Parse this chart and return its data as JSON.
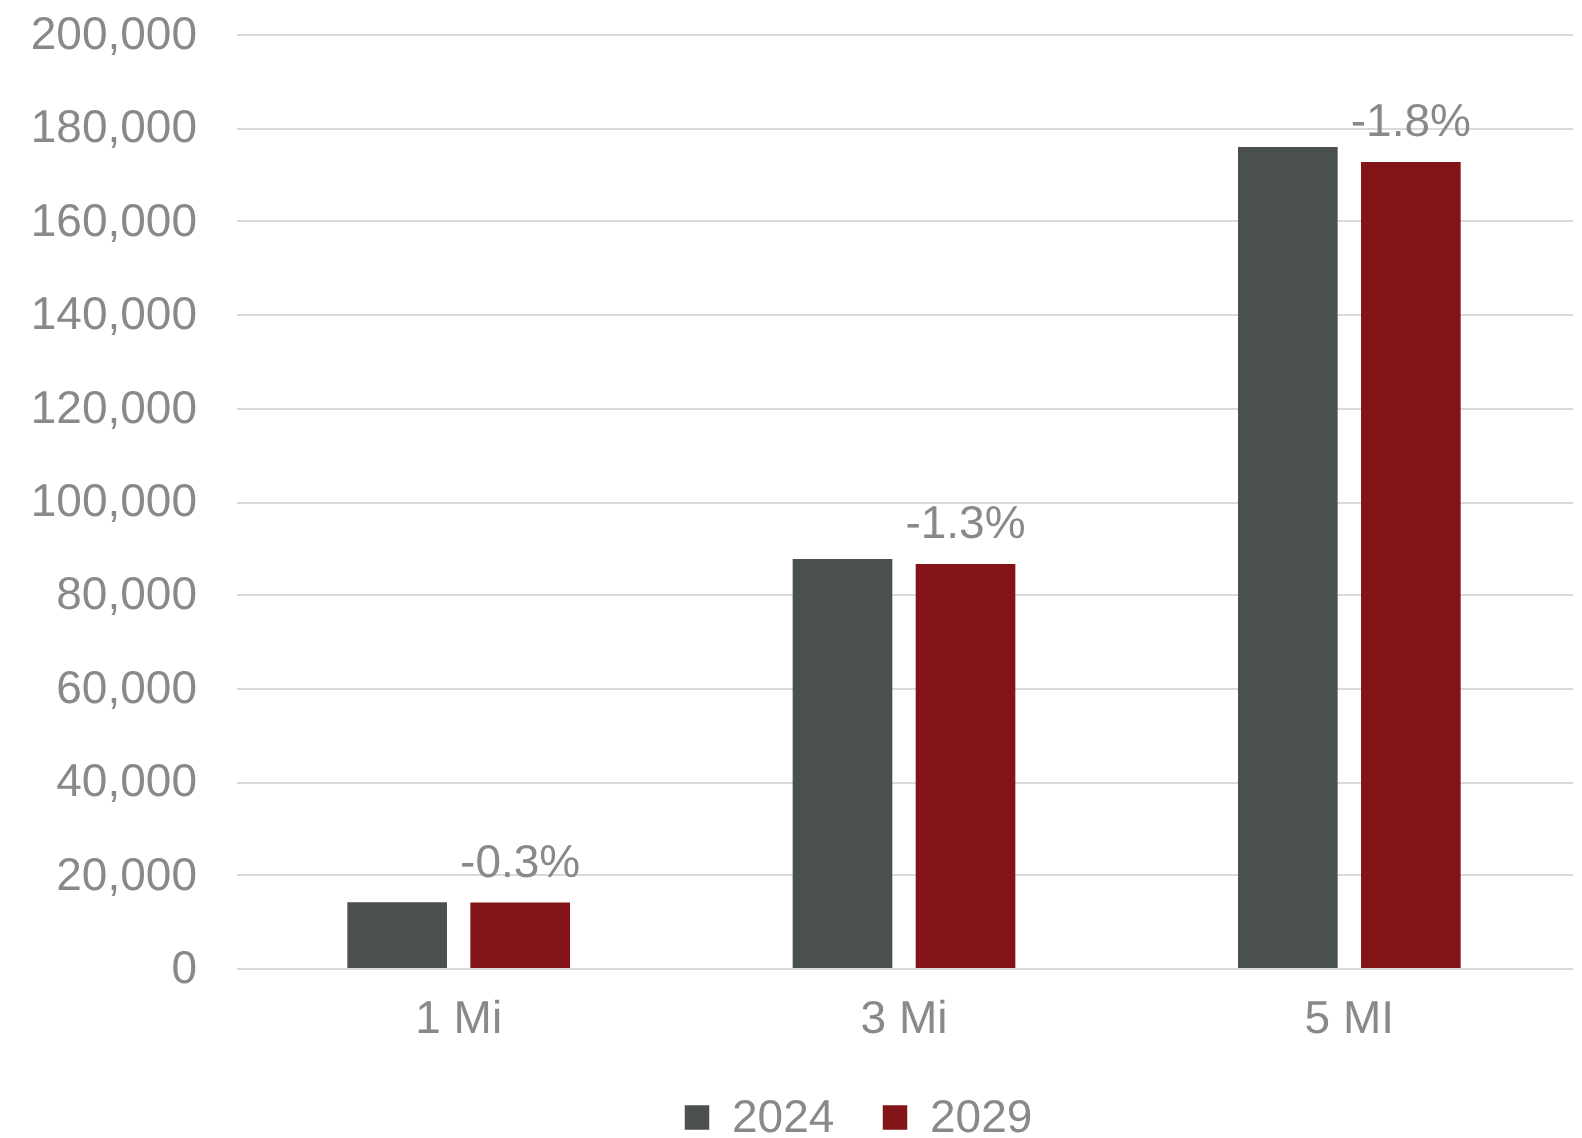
{
  "chart_data": {
    "type": "bar",
    "categories": [
      "1 Mi",
      "3 Mi",
      "5 MI"
    ],
    "series": [
      {
        "name": "2024",
        "color": "#4a4f4f",
        "values": [
          14100,
          87600,
          175800
        ]
      },
      {
        "name": "2029",
        "color": "#821418",
        "values": [
          14000,
          86500,
          172600
        ]
      }
    ],
    "annotations": [
      "-0.3%",
      "-1.3%",
      "-1.8%"
    ],
    "ylim": [
      0,
      200000
    ],
    "yticks": [
      0,
      {
        "value": 20000,
        "label": "20,000"
      },
      {
        "value": 40000,
        "label": "40,000"
      },
      {
        "value": 60000,
        "label": "60,000"
      },
      {
        "value": 80000,
        "label": "80,000"
      },
      {
        "value": 100000,
        "label": "100,000"
      },
      {
        "value": 120000,
        "label": "120,000"
      },
      {
        "value": 140000,
        "label": "140,000"
      },
      {
        "value": 160000,
        "label": "160,000"
      },
      {
        "value": 180000,
        "label": "180,000"
      },
      {
        "value": 200000,
        "label": "200,000"
      }
    ],
    "grid": "y",
    "legend": "bottom"
  }
}
